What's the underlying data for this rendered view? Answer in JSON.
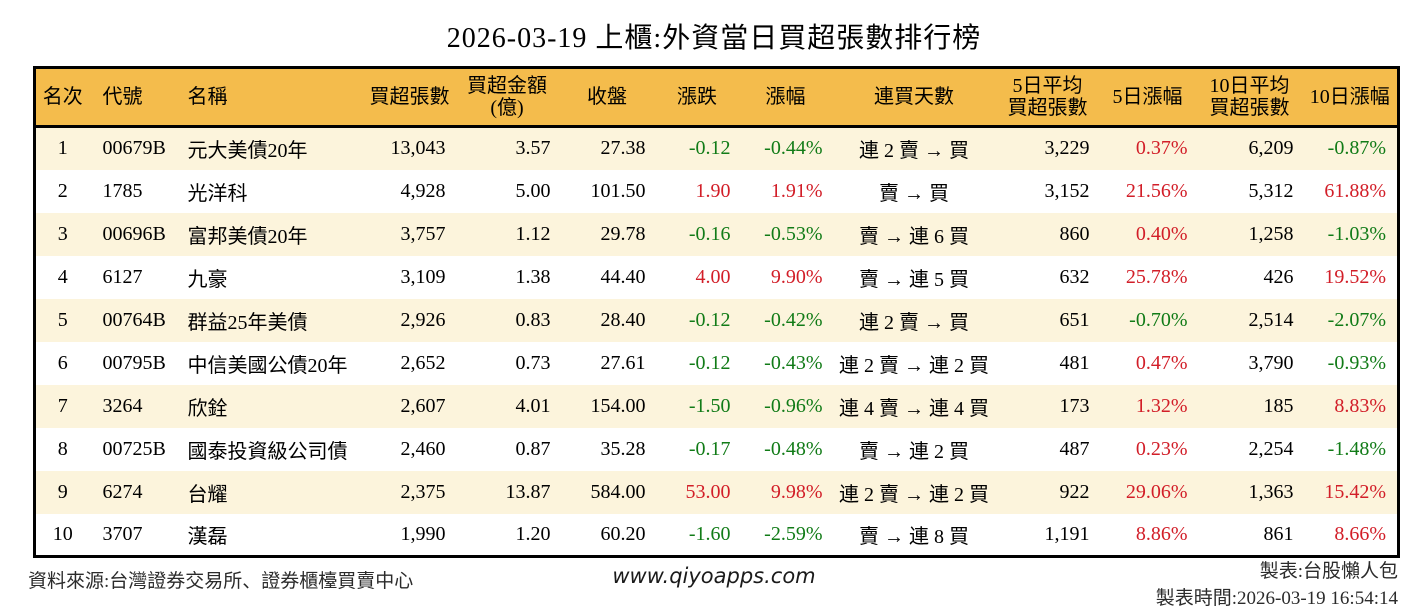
{
  "title": "2026-03-19 上櫃:外資當日買超張數排行榜",
  "colors": {
    "header_bg": "#f4bc4c",
    "row_alt_bg": "#fcf4dc",
    "row_bg": "#ffffff",
    "up_red": "#d21e28",
    "down_green": "#117b17",
    "border": "#000000"
  },
  "chart_data": {
    "type": "table",
    "columns": [
      {
        "key": "rank",
        "label": "名次"
      },
      {
        "key": "code",
        "label": "代號"
      },
      {
        "key": "name",
        "label": "名稱"
      },
      {
        "key": "net_buy",
        "label": "買超張數"
      },
      {
        "key": "net_amount",
        "label": "買超金額\n(億)"
      },
      {
        "key": "close",
        "label": "收盤"
      },
      {
        "key": "change",
        "label": "漲跌"
      },
      {
        "key": "change_pct",
        "label": "漲幅"
      },
      {
        "key": "streak",
        "label": "連買天數"
      },
      {
        "key": "avg5",
        "label": "5日平均\n買超張數"
      },
      {
        "key": "pct5",
        "label": "5日漲幅"
      },
      {
        "key": "avg10",
        "label": "10日平均\n買超張數"
      },
      {
        "key": "pct10",
        "label": "10日漲幅"
      }
    ],
    "rows": [
      {
        "values": {
          "rank": "1",
          "code": "00679B",
          "name": "元大美債20年",
          "net_buy": "13,043",
          "net_amount": "3.57",
          "close": "27.38",
          "change": "-0.12",
          "change_pct": "-0.44%",
          "streak": "連 2 賣 → 買",
          "avg5": "3,229",
          "pct5": "0.37%",
          "avg10": "6,209",
          "pct10": "-0.87%"
        },
        "trends": {
          "change": "down",
          "change_pct": "down",
          "pct5": "up",
          "pct10": "down"
        }
      },
      {
        "values": {
          "rank": "2",
          "code": "1785",
          "name": "光洋科",
          "net_buy": "4,928",
          "net_amount": "5.00",
          "close": "101.50",
          "change": "1.90",
          "change_pct": "1.91%",
          "streak": "賣 → 買",
          "avg5": "3,152",
          "pct5": "21.56%",
          "avg10": "5,312",
          "pct10": "61.88%"
        },
        "trends": {
          "change": "up",
          "change_pct": "up",
          "pct5": "up",
          "pct10": "up"
        }
      },
      {
        "values": {
          "rank": "3",
          "code": "00696B",
          "name": "富邦美債20年",
          "net_buy": "3,757",
          "net_amount": "1.12",
          "close": "29.78",
          "change": "-0.16",
          "change_pct": "-0.53%",
          "streak": "賣 → 連 6 買",
          "avg5": "860",
          "pct5": "0.40%",
          "avg10": "1,258",
          "pct10": "-1.03%"
        },
        "trends": {
          "change": "down",
          "change_pct": "down",
          "pct5": "up",
          "pct10": "down"
        }
      },
      {
        "values": {
          "rank": "4",
          "code": "6127",
          "name": "九豪",
          "net_buy": "3,109",
          "net_amount": "1.38",
          "close": "44.40",
          "change": "4.00",
          "change_pct": "9.90%",
          "streak": "賣 → 連 5 買",
          "avg5": "632",
          "pct5": "25.78%",
          "avg10": "426",
          "pct10": "19.52%"
        },
        "trends": {
          "change": "up",
          "change_pct": "up",
          "pct5": "up",
          "pct10": "up"
        }
      },
      {
        "values": {
          "rank": "5",
          "code": "00764B",
          "name": "群益25年美債",
          "net_buy": "2,926",
          "net_amount": "0.83",
          "close": "28.40",
          "change": "-0.12",
          "change_pct": "-0.42%",
          "streak": "連 2 賣 → 買",
          "avg5": "651",
          "pct5": "-0.70%",
          "avg10": "2,514",
          "pct10": "-2.07%"
        },
        "trends": {
          "change": "down",
          "change_pct": "down",
          "pct5": "down",
          "pct10": "down"
        }
      },
      {
        "values": {
          "rank": "6",
          "code": "00795B",
          "name": "中信美國公債20年",
          "net_buy": "2,652",
          "net_amount": "0.73",
          "close": "27.61",
          "change": "-0.12",
          "change_pct": "-0.43%",
          "streak": "連 2 賣 → 連 2 買",
          "avg5": "481",
          "pct5": "0.47%",
          "avg10": "3,790",
          "pct10": "-0.93%"
        },
        "trends": {
          "change": "down",
          "change_pct": "down",
          "pct5": "up",
          "pct10": "down"
        }
      },
      {
        "values": {
          "rank": "7",
          "code": "3264",
          "name": "欣銓",
          "net_buy": "2,607",
          "net_amount": "4.01",
          "close": "154.00",
          "change": "-1.50",
          "change_pct": "-0.96%",
          "streak": "連 4 賣 → 連 4 買",
          "avg5": "173",
          "pct5": "1.32%",
          "avg10": "185",
          "pct10": "8.83%"
        },
        "trends": {
          "change": "down",
          "change_pct": "down",
          "pct5": "up",
          "pct10": "up"
        }
      },
      {
        "values": {
          "rank": "8",
          "code": "00725B",
          "name": "國泰投資級公司債",
          "net_buy": "2,460",
          "net_amount": "0.87",
          "close": "35.28",
          "change": "-0.17",
          "change_pct": "-0.48%",
          "streak": "賣 → 連 2 買",
          "avg5": "487",
          "pct5": "0.23%",
          "avg10": "2,254",
          "pct10": "-1.48%"
        },
        "trends": {
          "change": "down",
          "change_pct": "down",
          "pct5": "up",
          "pct10": "down"
        }
      },
      {
        "values": {
          "rank": "9",
          "code": "6274",
          "name": "台耀",
          "net_buy": "2,375",
          "net_amount": "13.87",
          "close": "584.00",
          "change": "53.00",
          "change_pct": "9.98%",
          "streak": "連 2 賣 → 連 2 買",
          "avg5": "922",
          "pct5": "29.06%",
          "avg10": "1,363",
          "pct10": "15.42%"
        },
        "trends": {
          "change": "up",
          "change_pct": "up",
          "pct5": "up",
          "pct10": "up"
        }
      },
      {
        "values": {
          "rank": "10",
          "code": "3707",
          "name": "漢磊",
          "net_buy": "1,990",
          "net_amount": "1.20",
          "close": "60.20",
          "change": "-1.60",
          "change_pct": "-2.59%",
          "streak": "賣 → 連 8 買",
          "avg5": "1,191",
          "pct5": "8.86%",
          "avg10": "861",
          "pct10": "8.66%"
        },
        "trends": {
          "change": "down",
          "change_pct": "down",
          "pct5": "up",
          "pct10": "up"
        }
      }
    ]
  },
  "footer": {
    "source": "資料來源:台灣證券交易所、證券櫃檯買賣中心",
    "website": "www.qiyoapps.com",
    "maker": "製表:台股懶人包",
    "made_time": "製表時間:2026-03-19 16:54:14"
  }
}
